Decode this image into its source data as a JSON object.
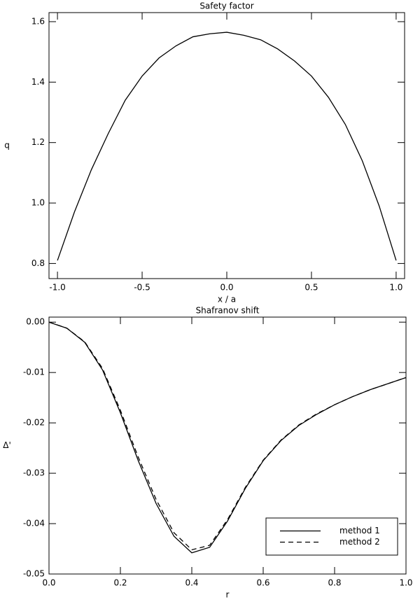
{
  "chart_data": [
    {
      "type": "line",
      "title": "Safety factor",
      "xlabel": "x / a",
      "ylabel": "q",
      "x": [
        -1.0,
        -0.9,
        -0.8,
        -0.7,
        -0.6,
        -0.5,
        -0.4,
        -0.3,
        -0.2,
        -0.1,
        0.0,
        0.1,
        0.2,
        0.3,
        0.4,
        0.5,
        0.6,
        0.7,
        0.8,
        0.9,
        1.0
      ],
      "series": [
        {
          "color": "#000000",
          "linestyle": "solid",
          "values": [
            0.81,
            0.97,
            1.11,
            1.23,
            1.34,
            1.42,
            1.48,
            1.52,
            1.55,
            1.56,
            1.565,
            1.555,
            1.54,
            1.51,
            1.47,
            1.42,
            1.35,
            1.26,
            1.14,
            0.99,
            0.81
          ]
        }
      ],
      "xlim": [
        -1.05,
        1.05
      ],
      "ylim": [
        0.75,
        1.63
      ],
      "xticks": [
        {
          "value": -1.0,
          "label": "-1.0"
        },
        -0.5,
        {
          "value": 0.0,
          "label": "0.0"
        },
        0.5,
        {
          "value": 1.0,
          "label": "1.0"
        }
      ],
      "yticks": [
        0.8,
        {
          "value": 1.0,
          "label": "1.0"
        },
        1.2,
        1.4,
        1.6
      ]
    },
    {
      "type": "line",
      "title": "Shafranov shift",
      "xlabel": "r",
      "ylabel": "Δ'",
      "x": [
        0.0,
        0.05,
        0.1,
        0.15,
        0.2,
        0.25,
        0.3,
        0.35,
        0.4,
        0.45,
        0.5,
        0.55,
        0.6,
        0.65,
        0.7,
        0.75,
        0.8,
        0.85,
        0.9,
        0.95,
        1.0
      ],
      "series": [
        {
          "name": "method 1",
          "color": "#000000",
          "linestyle": "solid",
          "values": [
            0.0,
            -0.0012,
            -0.004,
            -0.0095,
            -0.018,
            -0.0275,
            -0.036,
            -0.0425,
            -0.0458,
            -0.0447,
            -0.0395,
            -0.033,
            -0.0275,
            -0.0235,
            -0.0205,
            -0.0183,
            -0.0164,
            -0.0148,
            -0.0134,
            -0.0122,
            -0.011
          ]
        },
        {
          "name": "method 2",
          "color": "#000000",
          "linestyle": "dashed",
          "values": [
            0.0,
            -0.0012,
            -0.0039,
            -0.0092,
            -0.0175,
            -0.0268,
            -0.0352,
            -0.0418,
            -0.0452,
            -0.0443,
            -0.0392,
            -0.0328,
            -0.0274,
            -0.0234,
            -0.0204,
            -0.0182,
            -0.0164,
            -0.0148,
            -0.0134,
            -0.0122,
            -0.011
          ]
        }
      ],
      "xlim": [
        0.0,
        1.0
      ],
      "ylim": [
        -0.05,
        0.001
      ],
      "xticks": [
        {
          "value": 0.0,
          "label": "0.0"
        },
        0.2,
        0.4,
        0.6,
        0.8,
        {
          "value": 1.0,
          "label": "1.0"
        }
      ],
      "yticks": [
        {
          "value": -0.05,
          "label": "-0.05"
        },
        {
          "value": -0.04,
          "label": "-0.04"
        },
        {
          "value": -0.03,
          "label": "-0.03"
        },
        {
          "value": -0.02,
          "label": "-0.02"
        },
        {
          "value": -0.01,
          "label": "-0.01"
        },
        {
          "value": 0.0,
          "label": "0.00"
        }
      ],
      "legend": "lower right"
    }
  ]
}
